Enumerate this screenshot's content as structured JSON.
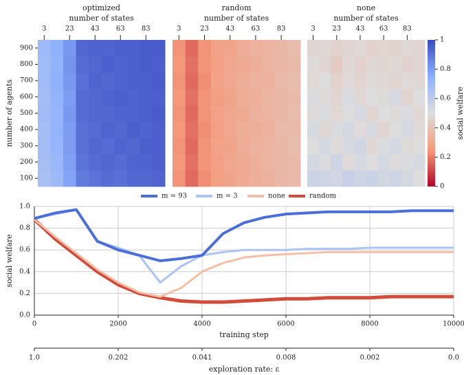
{
  "chart_data": [
    {
      "type": "heatmap",
      "title": "optimized",
      "xlabel": "number of states",
      "ylabel": "number of agents",
      "x": [
        3,
        13,
        23,
        33,
        43,
        53,
        63,
        73,
        83,
        93
      ],
      "xlim": [
        -2,
        98
      ],
      "xticks": [
        3,
        23,
        43,
        63,
        83
      ],
      "y": [
        100,
        200,
        300,
        400,
        500,
        600,
        700,
        800,
        900
      ],
      "ylim": [
        50,
        950
      ],
      "yticks": [
        100,
        200,
        300,
        400,
        500,
        600,
        700,
        800,
        900
      ],
      "clim": [
        0,
        1
      ],
      "colormap": [
        "#b40426",
        "#f49a7b",
        "#dddddd",
        "#8db0fe",
        "#3b4cc0"
      ],
      "values": [
        [
          0.66,
          0.7,
          0.78,
          0.88,
          0.9,
          0.92,
          0.91,
          0.93,
          0.93,
          0.94
        ],
        [
          0.67,
          0.71,
          0.79,
          0.9,
          0.92,
          0.93,
          0.92,
          0.94,
          0.94,
          0.95
        ],
        [
          0.68,
          0.72,
          0.8,
          0.91,
          0.93,
          0.92,
          0.94,
          0.93,
          0.95,
          0.95
        ],
        [
          0.68,
          0.73,
          0.8,
          0.91,
          0.92,
          0.94,
          0.93,
          0.95,
          0.94,
          0.95
        ],
        [
          0.69,
          0.72,
          0.81,
          0.92,
          0.93,
          0.93,
          0.94,
          0.94,
          0.95,
          0.96
        ],
        [
          0.68,
          0.73,
          0.8,
          0.92,
          0.93,
          0.94,
          0.95,
          0.94,
          0.95,
          0.95
        ],
        [
          0.69,
          0.74,
          0.81,
          0.91,
          0.94,
          0.93,
          0.94,
          0.95,
          0.95,
          0.96
        ],
        [
          0.69,
          0.73,
          0.82,
          0.92,
          0.93,
          0.95,
          0.94,
          0.95,
          0.96,
          0.95
        ],
        [
          0.7,
          0.74,
          0.81,
          0.93,
          0.94,
          0.94,
          0.95,
          0.95,
          0.96,
          0.96
        ]
      ]
    },
    {
      "type": "heatmap",
      "title": "random",
      "xlabel": "number of states",
      "x": [
        3,
        13,
        23,
        33,
        43,
        53,
        63,
        73,
        83,
        93
      ],
      "xlim": [
        -2,
        98
      ],
      "xticks": [
        3,
        23,
        43,
        63,
        83
      ],
      "y": [
        100,
        200,
        300,
        400,
        500,
        600,
        700,
        800,
        900
      ],
      "ylim": [
        50,
        950
      ],
      "clim": [
        0,
        1
      ],
      "colormap": [
        "#b40426",
        "#f49a7b",
        "#dddddd",
        "#8db0fe",
        "#3b4cc0"
      ],
      "values": [
        [
          0.24,
          0.17,
          0.23,
          0.27,
          0.29,
          0.31,
          0.33,
          0.34,
          0.36,
          0.37
        ],
        [
          0.25,
          0.18,
          0.24,
          0.27,
          0.3,
          0.31,
          0.33,
          0.35,
          0.36,
          0.37
        ],
        [
          0.24,
          0.17,
          0.24,
          0.28,
          0.29,
          0.32,
          0.34,
          0.35,
          0.36,
          0.38
        ],
        [
          0.25,
          0.18,
          0.23,
          0.27,
          0.3,
          0.32,
          0.33,
          0.34,
          0.37,
          0.37
        ],
        [
          0.24,
          0.17,
          0.24,
          0.28,
          0.3,
          0.31,
          0.34,
          0.35,
          0.36,
          0.38
        ],
        [
          0.25,
          0.18,
          0.24,
          0.27,
          0.29,
          0.32,
          0.33,
          0.35,
          0.36,
          0.37
        ],
        [
          0.24,
          0.17,
          0.23,
          0.28,
          0.3,
          0.32,
          0.34,
          0.34,
          0.37,
          0.38
        ],
        [
          0.25,
          0.18,
          0.24,
          0.27,
          0.3,
          0.31,
          0.33,
          0.35,
          0.36,
          0.37
        ],
        [
          0.24,
          0.17,
          0.24,
          0.28,
          0.29,
          0.32,
          0.34,
          0.35,
          0.36,
          0.38
        ]
      ]
    },
    {
      "type": "heatmap",
      "title": "none",
      "xlabel": "number of states",
      "x": [
        3,
        13,
        23,
        33,
        43,
        53,
        63,
        73,
        83,
        93
      ],
      "xlim": [
        -2,
        98
      ],
      "xticks": [
        3,
        23,
        43,
        63,
        83
      ],
      "y": [
        100,
        200,
        300,
        400,
        500,
        600,
        700,
        800,
        900
      ],
      "ylim": [
        50,
        950
      ],
      "clim": [
        0,
        1
      ],
      "colormap": [
        "#b40426",
        "#f49a7b",
        "#dddddd",
        "#8db0fe",
        "#3b4cc0"
      ],
      "colorbar": {
        "label": "social welfare",
        "ticks": [
          0,
          0.2,
          0.4,
          0.6,
          0.8,
          1
        ]
      },
      "values": [
        [
          0.56,
          0.55,
          0.54,
          0.57,
          0.55,
          0.56,
          0.54,
          0.55,
          0.53,
          0.5
        ],
        [
          0.53,
          0.51,
          0.55,
          0.49,
          0.52,
          0.5,
          0.53,
          0.49,
          0.51,
          0.52
        ],
        [
          0.5,
          0.53,
          0.49,
          0.52,
          0.54,
          0.48,
          0.51,
          0.53,
          0.49,
          0.5
        ],
        [
          0.52,
          0.48,
          0.51,
          0.53,
          0.49,
          0.52,
          0.47,
          0.5,
          0.52,
          0.49
        ],
        [
          0.49,
          0.51,
          0.48,
          0.5,
          0.52,
          0.47,
          0.5,
          0.49,
          0.51,
          0.48
        ],
        [
          0.51,
          0.49,
          0.47,
          0.51,
          0.48,
          0.5,
          0.49,
          0.52,
          0.47,
          0.5
        ],
        [
          0.48,
          0.5,
          0.46,
          0.49,
          0.47,
          0.49,
          0.48,
          0.47,
          0.49,
          0.48
        ],
        [
          0.49,
          0.47,
          0.43,
          0.48,
          0.46,
          0.48,
          0.47,
          0.48,
          0.46,
          0.47
        ],
        [
          0.47,
          0.48,
          0.46,
          0.47,
          0.48,
          0.46,
          0.47,
          0.46,
          0.48,
          0.47
        ]
      ]
    },
    {
      "type": "line",
      "xlabel": "training step",
      "ylabel": "social welfare",
      "grid": true,
      "legend": "top",
      "x": [
        0,
        500,
        1000,
        1500,
        2000,
        2500,
        3000,
        3500,
        4000,
        4500,
        5000,
        5500,
        6000,
        6500,
        7000,
        7500,
        8000,
        8500,
        9000,
        9500,
        10000
      ],
      "xlim": [
        0,
        10000
      ],
      "xticks": [
        0,
        2000,
        4000,
        6000,
        8000,
        10000
      ],
      "ylim": [
        0,
        1
      ],
      "yticks": [
        {
          "value": 0,
          "label": "0.0"
        },
        0.2,
        0.4,
        0.6,
        0.8,
        {
          "value": 1,
          "label": "1.0"
        }
      ],
      "x2label": "exploration rate: ε",
      "x2ticks": [
        {
          "value": 0,
          "label": "1.0"
        },
        {
          "value": 2000,
          "label": "0.202"
        },
        {
          "value": 4000,
          "label": "0.041"
        },
        {
          "value": 6000,
          "label": "0.008"
        },
        {
          "value": 8000,
          "label": "0.002"
        },
        {
          "value": 10000,
          "label": "0.0"
        }
      ],
      "series": [
        {
          "name": "m = 93",
          "color": "#4b6fd8",
          "values": [
            0.89,
            0.94,
            0.97,
            0.68,
            0.6,
            0.55,
            0.5,
            0.52,
            0.55,
            0.75,
            0.85,
            0.9,
            0.93,
            0.94,
            0.95,
            0.95,
            0.95,
            0.95,
            0.96,
            0.96,
            0.96
          ]
        },
        {
          "name": "m = 3",
          "color": "#a9c4f5",
          "values": [
            0.89,
            0.93,
            0.97,
            0.68,
            0.62,
            0.55,
            0.3,
            0.45,
            0.55,
            0.58,
            0.6,
            0.6,
            0.6,
            0.61,
            0.61,
            0.61,
            0.62,
            0.62,
            0.62,
            0.62,
            0.62
          ]
        },
        {
          "name": "none",
          "color": "#f4bfa6",
          "values": [
            0.88,
            0.72,
            0.57,
            0.42,
            0.3,
            0.21,
            0.17,
            0.25,
            0.4,
            0.48,
            0.53,
            0.55,
            0.56,
            0.57,
            0.58,
            0.58,
            0.58,
            0.58,
            0.58,
            0.58,
            0.58
          ]
        },
        {
          "name": "random",
          "color": "#d24c3c",
          "values": [
            0.88,
            0.7,
            0.55,
            0.4,
            0.28,
            0.2,
            0.16,
            0.13,
            0.12,
            0.12,
            0.13,
            0.14,
            0.15,
            0.15,
            0.16,
            0.16,
            0.16,
            0.17,
            0.17,
            0.17,
            0.17
          ]
        }
      ]
    }
  ]
}
